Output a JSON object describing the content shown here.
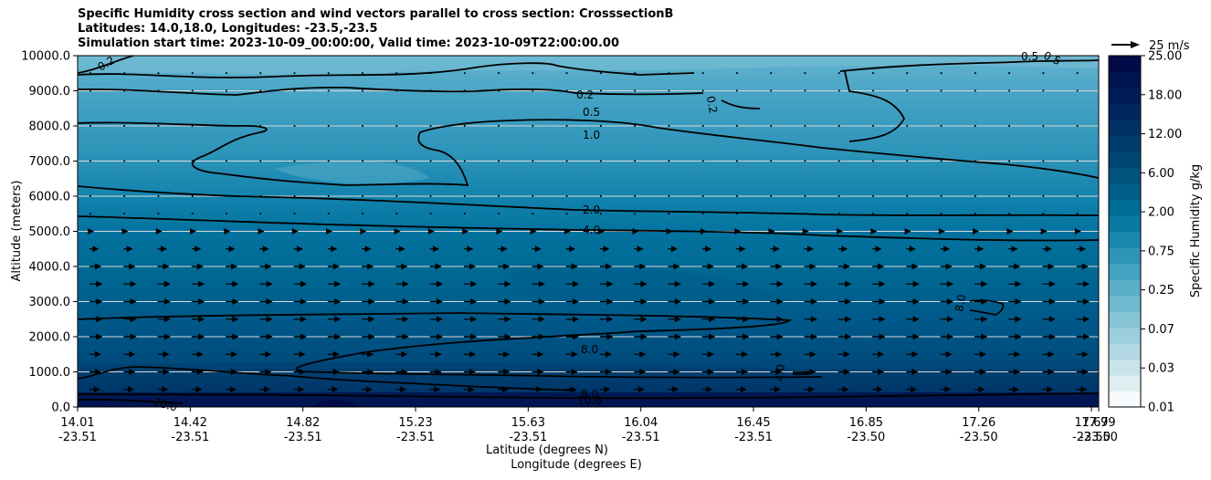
{
  "title_lines": [
    "Specific Humidity cross section and wind vectors parallel to cross section: CrosssectionB",
    "Latitudes: 14.0,18.0, Longitudes: -23.5,-23.5",
    "Simulation start time: 2023-10-09_00:00:00, Valid time: 2023-10-09T22:00:00.00"
  ],
  "colors": {
    "levels": [
      "#f7fbfd",
      "#e0eef2",
      "#c9e3ea",
      "#b2d8e3",
      "#9ccfdd",
      "#86c5d6",
      "#6fb9cf",
      "#5aaec8",
      "#44a1c0",
      "#2e95b8",
      "#1a87ae",
      "#087aa3",
      "#006c96",
      "#005f89",
      "#00537d",
      "#004773",
      "#003c6a",
      "#003163",
      "#00275e",
      "#001d57",
      "#001450",
      "#000b48"
    ]
  },
  "chart_data": {
    "type": "contourf",
    "title": "Specific Humidity cross section and wind vectors parallel to cross section: CrosssectionB",
    "ylabel": "Altitude (meters)",
    "xlabel_lat": "Latitude (degrees N)",
    "xlabel_lon": "Longitude (degrees E)",
    "ylim": [
      0,
      10000
    ],
    "yticks": [
      "0.0",
      "1000.0",
      "2000.0",
      "3000.0",
      "4000.0",
      "5000.0",
      "6000.0",
      "7000.0",
      "8000.0",
      "9000.0",
      "10000.0"
    ],
    "xticks_lat": [
      "14.01",
      "14.42",
      "14.82",
      "15.23",
      "15.63",
      "16.04",
      "16.45",
      "16.85",
      "17.26",
      "17.67",
      "17.99"
    ],
    "xticks_lon": [
      "-23.51",
      "-23.51",
      "-23.51",
      "-23.51",
      "-23.51",
      "-23.51",
      "-23.51",
      "-23.50",
      "-23.50",
      "-23.50",
      "-23.50"
    ],
    "colorbar": {
      "label": "Specific Humidity g/kg",
      "ticks": [
        "0.01",
        "0.03",
        "0.07",
        "0.25",
        "0.75",
        "2.00",
        "6.00",
        "12.00",
        "18.00",
        "25.00"
      ]
    },
    "quiver_key": "25 m/s",
    "contour_labels": [
      "0.2",
      "0.5",
      "1.0",
      "2.0",
      "4.0",
      "8.0",
      "0.2",
      "0.2",
      "8.0",
      "4.0",
      "8.0",
      "10.0",
      "20.0",
      "0.5",
      "0.5"
    ],
    "humidity_layers": [
      {
        "altitude_m": 9500,
        "q_gkg": 0.3
      },
      {
        "altitude_m": 8000,
        "q_gkg": 0.7
      },
      {
        "altitude_m": 6500,
        "q_gkg": 1.2
      },
      {
        "altitude_m": 5200,
        "q_gkg": 2.5
      },
      {
        "altitude_m": 4000,
        "q_gkg": 5.0
      },
      {
        "altitude_m": 2500,
        "q_gkg": 8.0
      },
      {
        "altitude_m": 1000,
        "q_gkg": 10.0
      },
      {
        "altitude_m": 200,
        "q_gkg": 16.0
      }
    ],
    "wind_profile": [
      {
        "altitude_m": 500,
        "u_ms": 9
      },
      {
        "altitude_m": 1000,
        "u_ms": 10
      },
      {
        "altitude_m": 1500,
        "u_ms": 10
      },
      {
        "altitude_m": 2000,
        "u_ms": 11
      },
      {
        "altitude_m": 2500,
        "u_ms": 11
      },
      {
        "altitude_m": 3000,
        "u_ms": 11
      },
      {
        "altitude_m": 3500,
        "u_ms": 11
      },
      {
        "altitude_m": 4000,
        "u_ms": 10
      },
      {
        "altitude_m": 4500,
        "u_ms": 8
      },
      {
        "altitude_m": 5000,
        "u_ms": 4
      },
      {
        "altitude_m": 5500,
        "u_ms": 2
      },
      {
        "altitude_m": 6000,
        "u_ms": 1
      },
      {
        "altitude_m": 7000,
        "u_ms": 1
      },
      {
        "altitude_m": 8000,
        "u_ms": 1
      },
      {
        "altitude_m": 9000,
        "u_ms": 1
      },
      {
        "altitude_m": 9500,
        "u_ms": 1
      }
    ]
  }
}
